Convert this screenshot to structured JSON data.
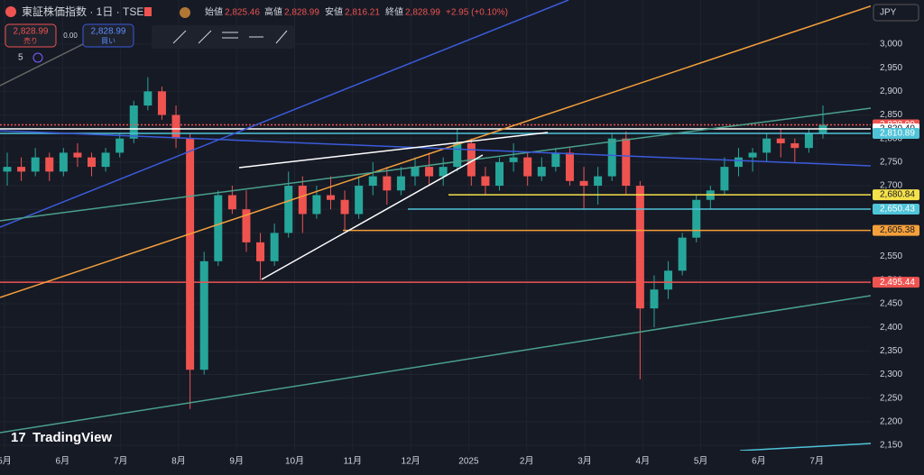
{
  "header": {
    "symbol": "東証株価指数 · 1日 · TSE",
    "open_label": "始値",
    "open": "2,825.46",
    "high_label": "高値",
    "high": "2,828.99",
    "low_label": "安値",
    "low": "2,816.21",
    "close_label": "終値",
    "close": "2,828.99",
    "change": "+2.95 (+0.10%)"
  },
  "trade": {
    "sell_price": "2,828.99",
    "sell_label": "売り",
    "spread": "0.00",
    "buy_price": "2,828.99",
    "buy_label": "買い"
  },
  "indicators": "5",
  "currency": "JPY",
  "brand": "TradingView",
  "chart_data": {
    "type": "candlestick",
    "up_color": "#26a69a",
    "down_color": "#ef5350",
    "ohlc": [
      [
        2730,
        2770,
        2700,
        2740
      ],
      [
        2740,
        2760,
        2710,
        2730
      ],
      [
        2730,
        2780,
        2720,
        2760
      ],
      [
        2760,
        2770,
        2710,
        2730
      ],
      [
        2730,
        2780,
        2720,
        2770
      ],
      [
        2770,
        2790,
        2740,
        2760
      ],
      [
        2760,
        2770,
        2720,
        2740
      ],
      [
        2740,
        2780,
        2730,
        2770
      ],
      [
        2770,
        2810,
        2760,
        2800
      ],
      [
        2800,
        2880,
        2790,
        2870
      ],
      [
        2870,
        2930,
        2860,
        2900
      ],
      [
        2900,
        2910,
        2840,
        2850
      ],
      [
        2850,
        2870,
        2780,
        2800
      ],
      [
        2800,
        2810,
        2227,
        2310
      ],
      [
        2310,
        2560,
        2300,
        2540
      ],
      [
        2540,
        2690,
        2530,
        2680
      ],
      [
        2680,
        2700,
        2640,
        2650
      ],
      [
        2650,
        2690,
        2560,
        2580
      ],
      [
        2580,
        2600,
        2500,
        2540
      ],
      [
        2540,
        2620,
        2530,
        2600
      ],
      [
        2600,
        2730,
        2590,
        2700
      ],
      [
        2700,
        2720,
        2600,
        2640
      ],
      [
        2640,
        2700,
        2630,
        2680
      ],
      [
        2680,
        2720,
        2650,
        2670
      ],
      [
        2670,
        2690,
        2605,
        2640
      ],
      [
        2640,
        2720,
        2630,
        2700
      ],
      [
        2700,
        2750,
        2680,
        2720
      ],
      [
        2720,
        2740,
        2660,
        2690
      ],
      [
        2690,
        2740,
        2680,
        2720
      ],
      [
        2720,
        2760,
        2700,
        2740
      ],
      [
        2740,
        2770,
        2700,
        2720
      ],
      [
        2720,
        2760,
        2700,
        2740
      ],
      [
        2740,
        2820,
        2730,
        2790
      ],
      [
        2790,
        2800,
        2700,
        2720
      ],
      [
        2720,
        2740,
        2680,
        2700
      ],
      [
        2700,
        2760,
        2690,
        2750
      ],
      [
        2750,
        2790,
        2730,
        2760
      ],
      [
        2760,
        2770,
        2700,
        2720
      ],
      [
        2720,
        2760,
        2710,
        2740
      ],
      [
        2740,
        2780,
        2730,
        2770
      ],
      [
        2770,
        2780,
        2700,
        2710
      ],
      [
        2710,
        2740,
        2650,
        2700
      ],
      [
        2700,
        2740,
        2660,
        2720
      ],
      [
        2720,
        2810,
        2710,
        2800
      ],
      [
        2800,
        2815,
        2680,
        2700
      ],
      [
        2700,
        2710,
        2290,
        2440
      ],
      [
        2440,
        2510,
        2400,
        2480
      ],
      [
        2480,
        2540,
        2460,
        2520
      ],
      [
        2520,
        2600,
        2510,
        2590
      ],
      [
        2590,
        2680,
        2580,
        2670
      ],
      [
        2670,
        2700,
        2650,
        2690
      ],
      [
        2690,
        2760,
        2680,
        2740
      ],
      [
        2740,
        2780,
        2720,
        2760
      ],
      [
        2760,
        2780,
        2730,
        2770
      ],
      [
        2770,
        2810,
        2750,
        2800
      ],
      [
        2800,
        2820,
        2760,
        2790
      ],
      [
        2790,
        2800,
        2750,
        2780
      ],
      [
        2780,
        2820,
        2770,
        2810
      ],
      [
        2810,
        2870,
        2800,
        2828.99
      ]
    ],
    "categories": [
      "5月",
      "6月",
      "7月",
      "8月",
      "9月",
      "10月",
      "11月",
      "12月",
      "2025",
      "2月",
      "3月",
      "4月",
      "5月",
      "6月",
      "7月"
    ],
    "ylim": [
      2150,
      3000
    ],
    "yticks": [
      {
        "value": 2150,
        "label": "2,150"
      },
      {
        "value": 2200,
        "label": "2,200"
      },
      {
        "value": 2250,
        "label": "2,250"
      },
      {
        "value": 2300,
        "label": "2,300"
      },
      {
        "value": 2350,
        "label": "2,350"
      },
      {
        "value": 2400,
        "label": "2,400"
      },
      {
        "value": 2450,
        "label": "2,450"
      },
      {
        "value": 2500,
        "label": "2,500"
      },
      {
        "value": 2550,
        "label": "2,550"
      },
      {
        "value": 2600,
        "label": "2,600"
      },
      {
        "value": 2650,
        "label": "2,650"
      },
      {
        "value": 2700,
        "label": "2,700"
      },
      {
        "value": 2750,
        "label": "2,750"
      },
      {
        "value": 2800,
        "label": "2,800"
      },
      {
        "value": 2850,
        "label": "2,850"
      },
      {
        "value": 2900,
        "label": "2,900"
      },
      {
        "value": 2950,
        "label": "2,950"
      },
      {
        "value": 3000,
        "label": "3,000"
      }
    ],
    "levels": [
      {
        "value": 2828.99,
        "label": "2,828.99",
        "color": "#ef5350"
      },
      {
        "value": 2820.4,
        "label": "2,820.40",
        "color": "#ffffff"
      },
      {
        "value": 2810.89,
        "label": "2,810.89",
        "color": "#4fc3d8"
      },
      {
        "value": 2680.84,
        "label": "2,680.84",
        "color": "#f5e14a"
      },
      {
        "value": 2650.43,
        "label": "2,650.43",
        "color": "#4fc3d8"
      },
      {
        "value": 2605.38,
        "label": "2,605.38",
        "color": "#f5a03a"
      },
      {
        "value": 2495.44,
        "label": "2,495.44",
        "color": "#ef5350"
      }
    ]
  }
}
